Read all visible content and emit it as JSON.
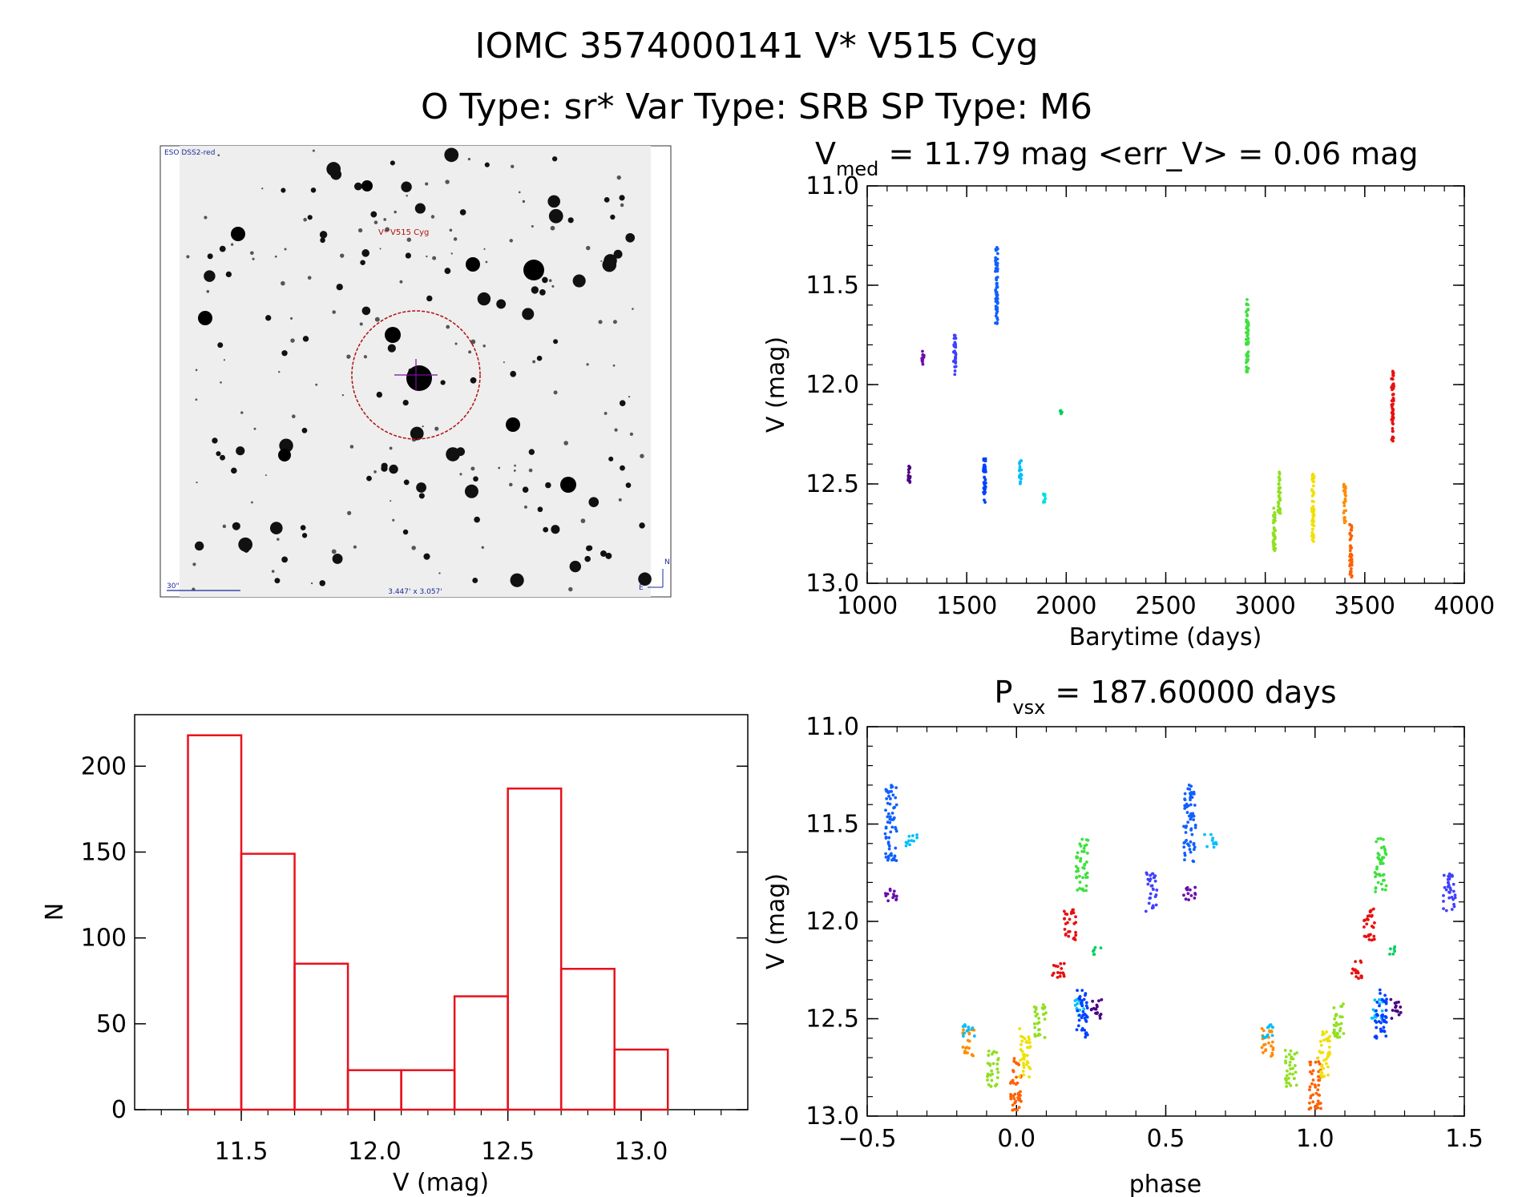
{
  "figure": {
    "title_line1": "IOMC 3574000141    V* V515 Cyg",
    "title_line2": "O Type: sr*  Var Type: SRB  SP Type: M6"
  },
  "finder": {
    "survey_label": "ESO DSS2-red",
    "target_label": "V* V515 Cyg",
    "scale_label": "30\"",
    "fov_label": "3.447' x 3.057'",
    "compass_n": "N",
    "compass_e": "E"
  },
  "colors": {
    "hist": "#e8111c",
    "circle": "#b01010",
    "blue_text": "#1a2a9a",
    "epochs": [
      "#4b0082",
      "#6a0dad",
      "#4040ff",
      "#1060ff",
      "#0040ff",
      "#00bfff",
      "#00e0e0",
      "#00d060",
      "#40e040",
      "#90e020",
      "#f0e000",
      "#ff8c00",
      "#ff6000",
      "#e81010"
    ]
  },
  "chart_data": [
    {
      "id": "lightcurve",
      "type": "scatter",
      "title": "V_med = 11.79 mag <err_V> = 0.06 mag",
      "title_parts": {
        "main": "V",
        "sub": "med",
        "rest": " = 11.79 mag <err_V> = 0.06 mag"
      },
      "xlabel": "Barytime (days)",
      "ylabel": "V (mag)",
      "xlim": [
        1000,
        4000
      ],
      "ylim": [
        13.0,
        11.0
      ],
      "xticks": [
        1000,
        1500,
        2000,
        2500,
        3000,
        3500,
        4000
      ],
      "yticks": [
        11.0,
        11.5,
        12.0,
        12.5,
        13.0
      ],
      "clusters": [
        {
          "x": 1210,
          "ymin": 12.4,
          "ymax": 12.5,
          "color": "#4b0082"
        },
        {
          "x": 1280,
          "ymin": 11.82,
          "ymax": 11.9,
          "color": "#6a0dad"
        },
        {
          "x": 1440,
          "ymin": 11.75,
          "ymax": 11.95,
          "color": "#4040ff"
        },
        {
          "x": 1590,
          "ymin": 12.35,
          "ymax": 12.6,
          "color": "#0040ff"
        },
        {
          "x": 1650,
          "ymin": 11.3,
          "ymax": 11.7,
          "color": "#1060ff"
        },
        {
          "x": 1770,
          "ymin": 12.38,
          "ymax": 12.5,
          "color": "#00bfff"
        },
        {
          "x": 1890,
          "ymin": 12.55,
          "ymax": 12.6,
          "color": "#00e0e0"
        },
        {
          "x": 1975,
          "ymin": 12.13,
          "ymax": 12.17,
          "color": "#00d060"
        },
        {
          "x": 2910,
          "ymin": 11.57,
          "ymax": 11.95,
          "color": "#40e040"
        },
        {
          "x": 3045,
          "ymin": 12.62,
          "ymax": 12.85,
          "color": "#90e020"
        },
        {
          "x": 3070,
          "ymin": 12.42,
          "ymax": 12.65,
          "color": "#90e020"
        },
        {
          "x": 3240,
          "ymin": 12.45,
          "ymax": 12.8,
          "color": "#f0e000"
        },
        {
          "x": 3400,
          "ymin": 12.5,
          "ymax": 12.7,
          "color": "#ff8c00"
        },
        {
          "x": 3430,
          "ymin": 12.7,
          "ymax": 12.97,
          "color": "#ff6000"
        },
        {
          "x": 3640,
          "ymin": 11.93,
          "ymax": 12.3,
          "color": "#e81010"
        }
      ]
    },
    {
      "id": "histogram",
      "type": "bar",
      "xlabel": "V (mag)",
      "ylabel": "N",
      "xlim": [
        11.1,
        13.4
      ],
      "ylim": [
        0,
        230
      ],
      "xticks": [
        11.5,
        12.0,
        12.5,
        13.0
      ],
      "yticks": [
        0,
        50,
        100,
        150,
        200
      ],
      "bin_edges": [
        11.3,
        11.5,
        11.7,
        11.9,
        12.1,
        12.3,
        12.5,
        12.7,
        12.9,
        13.1
      ],
      "counts": [
        218,
        149,
        85,
        23,
        23,
        66,
        187,
        82,
        35
      ]
    },
    {
      "id": "phased",
      "type": "scatter",
      "title": "P_vsx = 187.60000 days",
      "title_parts": {
        "main": "P",
        "sub": "vsx",
        "rest": " = 187.60000 days"
      },
      "xlabel": "phase",
      "ylabel": "V (mag)",
      "xlim": [
        -0.5,
        1.5
      ],
      "ylim": [
        13.0,
        11.0
      ],
      "xticks": [
        -0.5,
        0.0,
        0.5,
        1.0,
        1.5
      ],
      "yticks": [
        11.0,
        11.5,
        12.0,
        12.5,
        13.0
      ],
      "clusters": [
        {
          "x": -0.42,
          "ymin": 11.3,
          "ymax": 11.7,
          "color": "#1060ff"
        },
        {
          "x": -0.35,
          "ymin": 11.55,
          "ymax": 11.62,
          "color": "#00bfff"
        },
        {
          "x": -0.42,
          "ymin": 11.82,
          "ymax": 11.9,
          "color": "#6a0dad"
        },
        {
          "x": -0.16,
          "ymin": 12.55,
          "ymax": 12.7,
          "color": "#ff8c00"
        },
        {
          "x": -0.16,
          "ymin": 12.53,
          "ymax": 12.6,
          "color": "#00bfff"
        },
        {
          "x": -0.08,
          "ymin": 12.65,
          "ymax": 12.85,
          "color": "#90e020"
        },
        {
          "x": 0.0,
          "ymin": 12.7,
          "ymax": 12.97,
          "color": "#ff6000"
        },
        {
          "x": 0.03,
          "ymin": 12.55,
          "ymax": 12.8,
          "color": "#f0e000"
        },
        {
          "x": 0.08,
          "ymin": 12.42,
          "ymax": 12.6,
          "color": "#90e020"
        },
        {
          "x": 0.14,
          "ymin": 12.2,
          "ymax": 12.3,
          "color": "#e81010"
        },
        {
          "x": 0.18,
          "ymin": 11.93,
          "ymax": 12.1,
          "color": "#e81010"
        },
        {
          "x": 0.22,
          "ymin": 11.57,
          "ymax": 11.85,
          "color": "#40e040"
        },
        {
          "x": 0.21,
          "ymin": 12.4,
          "ymax": 12.5,
          "color": "#00bfff"
        },
        {
          "x": 0.22,
          "ymin": 12.35,
          "ymax": 12.6,
          "color": "#0040ff"
        },
        {
          "x": 0.27,
          "ymin": 12.4,
          "ymax": 12.5,
          "color": "#4b0082"
        },
        {
          "x": 0.27,
          "ymin": 12.13,
          "ymax": 12.17,
          "color": "#00d060"
        },
        {
          "x": 0.45,
          "ymin": 11.75,
          "ymax": 11.95,
          "color": "#4040ff"
        },
        {
          "x": 0.58,
          "ymin": 11.3,
          "ymax": 11.7,
          "color": "#1060ff"
        },
        {
          "x": 0.65,
          "ymin": 11.55,
          "ymax": 11.62,
          "color": "#00bfff"
        },
        {
          "x": 0.58,
          "ymin": 11.82,
          "ymax": 11.9,
          "color": "#6a0dad"
        },
        {
          "x": 0.84,
          "ymin": 12.55,
          "ymax": 12.7,
          "color": "#ff8c00"
        },
        {
          "x": 0.84,
          "ymin": 12.53,
          "ymax": 12.6,
          "color": "#00bfff"
        },
        {
          "x": 0.92,
          "ymin": 12.65,
          "ymax": 12.85,
          "color": "#90e020"
        },
        {
          "x": 1.0,
          "ymin": 12.7,
          "ymax": 12.97,
          "color": "#ff6000"
        },
        {
          "x": 1.03,
          "ymin": 12.55,
          "ymax": 12.8,
          "color": "#f0e000"
        },
        {
          "x": 1.08,
          "ymin": 12.42,
          "ymax": 12.6,
          "color": "#90e020"
        },
        {
          "x": 1.14,
          "ymin": 12.2,
          "ymax": 12.3,
          "color": "#e81010"
        },
        {
          "x": 1.18,
          "ymin": 11.93,
          "ymax": 12.1,
          "color": "#e81010"
        },
        {
          "x": 1.22,
          "ymin": 11.57,
          "ymax": 11.85,
          "color": "#40e040"
        },
        {
          "x": 1.21,
          "ymin": 12.4,
          "ymax": 12.5,
          "color": "#00bfff"
        },
        {
          "x": 1.22,
          "ymin": 12.35,
          "ymax": 12.6,
          "color": "#0040ff"
        },
        {
          "x": 1.27,
          "ymin": 12.4,
          "ymax": 12.5,
          "color": "#4b0082"
        },
        {
          "x": 1.27,
          "ymin": 12.13,
          "ymax": 12.17,
          "color": "#00d060"
        },
        {
          "x": 1.45,
          "ymin": 11.75,
          "ymax": 11.95,
          "color": "#4040ff"
        }
      ]
    }
  ]
}
